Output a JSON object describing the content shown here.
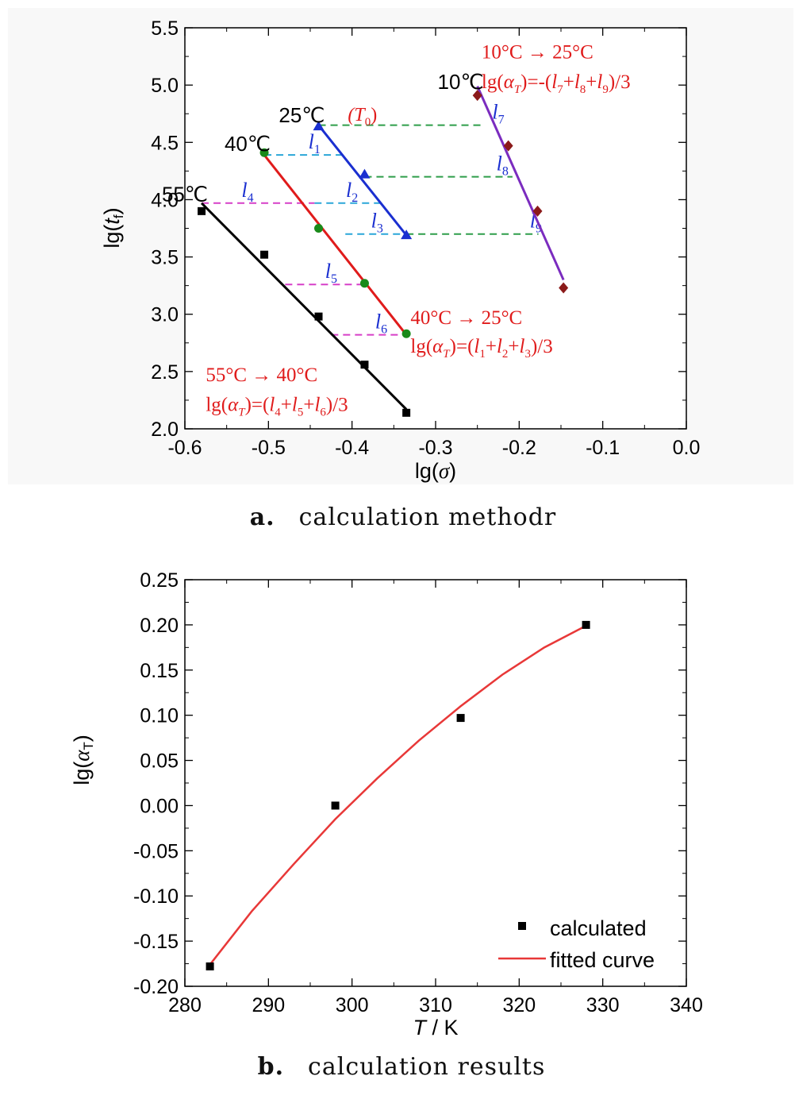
{
  "chart_data": [
    {
      "type": "scatter",
      "panel": "a",
      "caption_letter": "a.",
      "caption_text": "calculation methodr",
      "xlabel_prefix": "lg(",
      "xlabel_var": "σ",
      "xlabel_suffix": ")",
      "ylabel_prefix": "lg(",
      "ylabel_var": "t",
      "ylabel_sub": "f",
      "ylabel_suffix": ")",
      "xlim": [
        -0.6,
        0.0
      ],
      "ylim": [
        2.0,
        5.5
      ],
      "xticks": [
        -0.6,
        -0.5,
        -0.4,
        -0.3,
        -0.2,
        -0.1,
        0.0
      ],
      "xtick_labels": [
        "-0.6",
        "-0.5",
        "-0.4",
        "-0.3",
        "-0.2",
        "-0.1",
        "0.0"
      ],
      "yticks": [
        2.0,
        2.5,
        3.0,
        3.5,
        4.0,
        4.5,
        5.0,
        5.5
      ],
      "ytick_labels": [
        "2.0",
        "2.5",
        "3.0",
        "3.5",
        "4.0",
        "4.5",
        "5.0",
        "5.5"
      ],
      "series": [
        {
          "name": "10℃",
          "color": "#7b2cbf",
          "marker": "diamond",
          "marker_color": "#8b1a1a",
          "x": [
            -0.25,
            -0.213,
            -0.178,
            -0.147
          ],
          "y": [
            4.91,
            4.47,
            3.9,
            3.23
          ],
          "fit": {
            "x1": -0.25,
            "y1": 4.99,
            "x2": -0.147,
            "y2": 3.3
          }
        },
        {
          "name": "25℃",
          "color": "#1a2fd0",
          "marker": "triangle",
          "marker_color": "#1a2fd0",
          "x": [
            -0.44,
            -0.385,
            -0.335
          ],
          "y": [
            4.64,
            4.22,
            3.69
          ],
          "fit": {
            "x1": -0.44,
            "y1": 4.65,
            "x2": -0.335,
            "y2": 3.69
          }
        },
        {
          "name": "40℃",
          "color": "#e01b1b",
          "marker": "circle",
          "marker_color": "#1a8a1a",
          "x": [
            -0.505,
            -0.44,
            -0.385,
            -0.335
          ],
          "y": [
            4.41,
            3.75,
            3.27,
            2.83
          ],
          "fit": {
            "x1": -0.505,
            "y1": 4.39,
            "x2": -0.335,
            "y2": 2.82
          }
        },
        {
          "name": "55℃",
          "color": "#000000",
          "marker": "square",
          "marker_color": "#000000",
          "x": [
            -0.58,
            -0.505,
            -0.44,
            -0.385,
            -0.335
          ],
          "y": [
            3.9,
            3.52,
            2.98,
            2.56,
            2.14
          ],
          "fit": {
            "x1": -0.58,
            "y1": 3.97,
            "x2": -0.335,
            "y2": 2.17
          }
        }
      ],
      "series_label_suffix": {
        "25℃": "(T",
        "25℃_sub": "0",
        "25℃_close": ")"
      },
      "shift_lines": [
        {
          "id": "l7",
          "letter": "l",
          "sub": "7",
          "y": 4.65,
          "x1": -0.44,
          "x2": -0.245,
          "color": "#2e9e4a"
        },
        {
          "id": "l8",
          "letter": "l",
          "sub": "8",
          "y": 4.2,
          "x1": -0.385,
          "x2": -0.208,
          "color": "#2e9e4a"
        },
        {
          "id": "l9",
          "letter": "l",
          "sub": "9",
          "y": 3.7,
          "x1": -0.335,
          "x2": -0.177,
          "color": "#2e9e4a"
        },
        {
          "id": "l1",
          "letter": "l",
          "sub": "1",
          "y": 4.39,
          "x1": -0.505,
          "x2": -0.41,
          "color": "#2aa6d8"
        },
        {
          "id": "l2",
          "letter": "l",
          "sub": "2",
          "y": 3.97,
          "x1": -0.445,
          "x2": -0.365,
          "color": "#2aa6d8"
        },
        {
          "id": "l3",
          "letter": "l",
          "sub": "3",
          "y": 3.7,
          "x1": -0.408,
          "x2": -0.335,
          "color": "#2aa6d8"
        },
        {
          "id": "l4",
          "letter": "l",
          "sub": "4",
          "y": 3.97,
          "x1": -0.58,
          "x2": -0.445,
          "color": "#d63fc8"
        },
        {
          "id": "l5",
          "letter": "l",
          "sub": "5",
          "y": 3.26,
          "x1": -0.48,
          "x2": -0.385,
          "color": "#d63fc8"
        },
        {
          "id": "l6",
          "letter": "l",
          "sub": "6",
          "y": 2.82,
          "x1": -0.425,
          "x2": -0.335,
          "color": "#d63fc8"
        }
      ],
      "annotations": [
        {
          "id": "shift10",
          "line1": "10°C → 25°C",
          "line2_pre": "lg(α",
          "line2_sub": "T",
          "line2_post": ")=-(l",
          "terms": [
            "7",
            "8",
            "9"
          ],
          "sign": "-"
        },
        {
          "id": "shift40",
          "line1": "40°C → 25°C",
          "terms": [
            "1",
            "2",
            "3"
          ],
          "sign": ""
        },
        {
          "id": "shift55",
          "line1": "55°C → 40°C",
          "terms": [
            "4",
            "5",
            "6"
          ],
          "sign": ""
        }
      ],
      "annotation_color": "#e01b1b",
      "formula_parts": {
        "open": "lg(",
        "alpha": "α",
        "sub": "T",
        "eq": ")=",
        "l": "l",
        "plus": "+",
        "close": ")/3",
        "neg": "-("
      }
    },
    {
      "type": "scatter",
      "panel": "b",
      "caption_letter": "b.",
      "caption_text": "calculation results",
      "xlabel_var": "T",
      "xlabel_suffix": " / K",
      "ylabel_prefix": "lg(",
      "ylabel_var": "α",
      "ylabel_sub": "T",
      "ylabel_suffix": ")",
      "xlim": [
        280,
        340
      ],
      "ylim": [
        -0.2,
        0.25
      ],
      "xticks": [
        280,
        290,
        300,
        310,
        320,
        330,
        340
      ],
      "xtick_labels": [
        "280",
        "290",
        "300",
        "310",
        "320",
        "330",
        "340"
      ],
      "yticks": [
        -0.2,
        -0.15,
        -0.1,
        -0.05,
        0.0,
        0.05,
        0.1,
        0.15,
        0.2,
        0.25
      ],
      "ytick_labels": [
        "-0.20",
        "-0.15",
        "-0.10",
        "-0.05",
        "0.00",
        "0.05",
        "0.10",
        "0.15",
        "0.20",
        "0.25"
      ],
      "series": [
        {
          "name": "calculated",
          "marker": "square",
          "color": "#000000",
          "x": [
            283,
            298,
            313,
            328
          ],
          "y": [
            -0.178,
            0.0,
            0.097,
            0.2
          ]
        },
        {
          "name": "fitted curve",
          "marker": "line",
          "color": "#e83838",
          "x": [
            283,
            288,
            293,
            298,
            303,
            308,
            313,
            318,
            323,
            328
          ],
          "y": [
            -0.176,
            -0.117,
            -0.065,
            -0.015,
            0.03,
            0.072,
            0.11,
            0.145,
            0.175,
            0.199
          ]
        }
      ],
      "legend_position": "bottom-right"
    }
  ]
}
